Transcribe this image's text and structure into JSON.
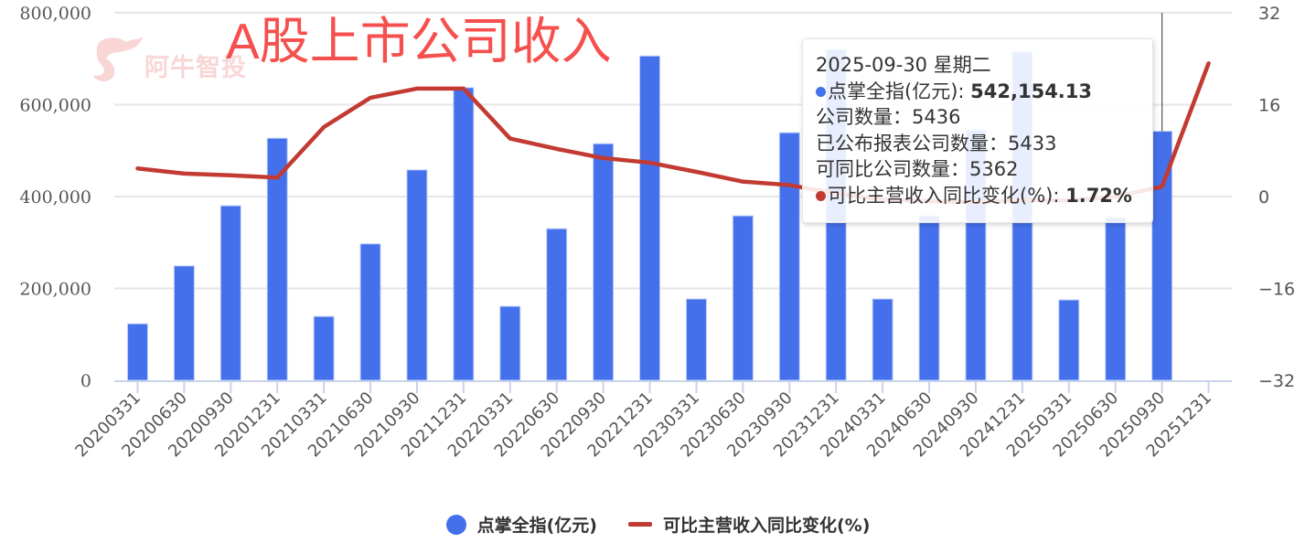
{
  "overlay_title": "A股上市公司收入",
  "watermark": "阿牛智投",
  "colors": {
    "bar": "#4570EC",
    "line": "#C23A32",
    "grid": "#E6E6E6",
    "axis": "#C9D3E8",
    "title": "#F5504D",
    "hover_band": "#DCE5FA"
  },
  "tooltip": {
    "date": "2025-09-30 星期二",
    "series1_label": "点掌全指(亿元)",
    "series1_value": "542,154.13",
    "company_count_label": "公司数量",
    "company_count": "5436",
    "published_count_label": "已公布报表公司数量",
    "published_count": "5433",
    "comparable_count_label": "可同比公司数量",
    "comparable_count": "5362",
    "series2_label": "可比主营收入同比变化(%)",
    "series2_value": "1.72%"
  },
  "legend": {
    "items": [
      {
        "label": "点掌全指(亿元)",
        "type": "bar"
      },
      {
        "label": "可比主营收入同比变化(%)",
        "type": "line"
      }
    ]
  },
  "chart_data": {
    "type": "bar",
    "title": "A股上市公司收入",
    "xlabel": "",
    "ylabel": "",
    "categories": [
      "20200331",
      "20200630",
      "20200930",
      "20201231",
      "20210331",
      "20210630",
      "20210930",
      "20211231",
      "20220331",
      "20220630",
      "20220930",
      "20221231",
      "20230331",
      "20230630",
      "20230930",
      "20231231",
      "20240331",
      "20240630",
      "20240930",
      "20241231",
      "20250331",
      "20250630",
      "20250930",
      "20251231"
    ],
    "series": [
      {
        "name": "点掌全指(亿元)",
        "type": "bar",
        "axis": "left",
        "values": [
          123000,
          249000,
          380000,
          527000,
          139000,
          297000,
          458000,
          637000,
          161000,
          330000,
          515000,
          706000,
          177000,
          358000,
          539000,
          720000,
          177000,
          358000,
          545000,
          715000,
          175000,
          354000,
          542154.13,
          null
        ]
      },
      {
        "name": "可比主营收入同比变化(%)",
        "type": "line",
        "axis": "right",
        "values": [
          4.9,
          4.0,
          3.7,
          3.3,
          12.1,
          17.2,
          18.8,
          18.8,
          10.1,
          8.3,
          6.7,
          5.9,
          4.3,
          2.6,
          2.0,
          0.5,
          -0.5,
          -0.8,
          -1.0,
          -0.6,
          -0.7,
          0.0,
          1.72,
          23.2
        ]
      }
    ],
    "ylim": [
      0,
      800000
    ],
    "y_ticks": [
      "0",
      "200,000",
      "400,000",
      "600,000",
      "800,000"
    ],
    "y2lim": [
      -32,
      32
    ],
    "y2_ticks": [
      "-32",
      "-16",
      "0",
      "16",
      "32"
    ],
    "grid": true,
    "legend_position": "bottom",
    "highlighted_category": "20250930"
  }
}
